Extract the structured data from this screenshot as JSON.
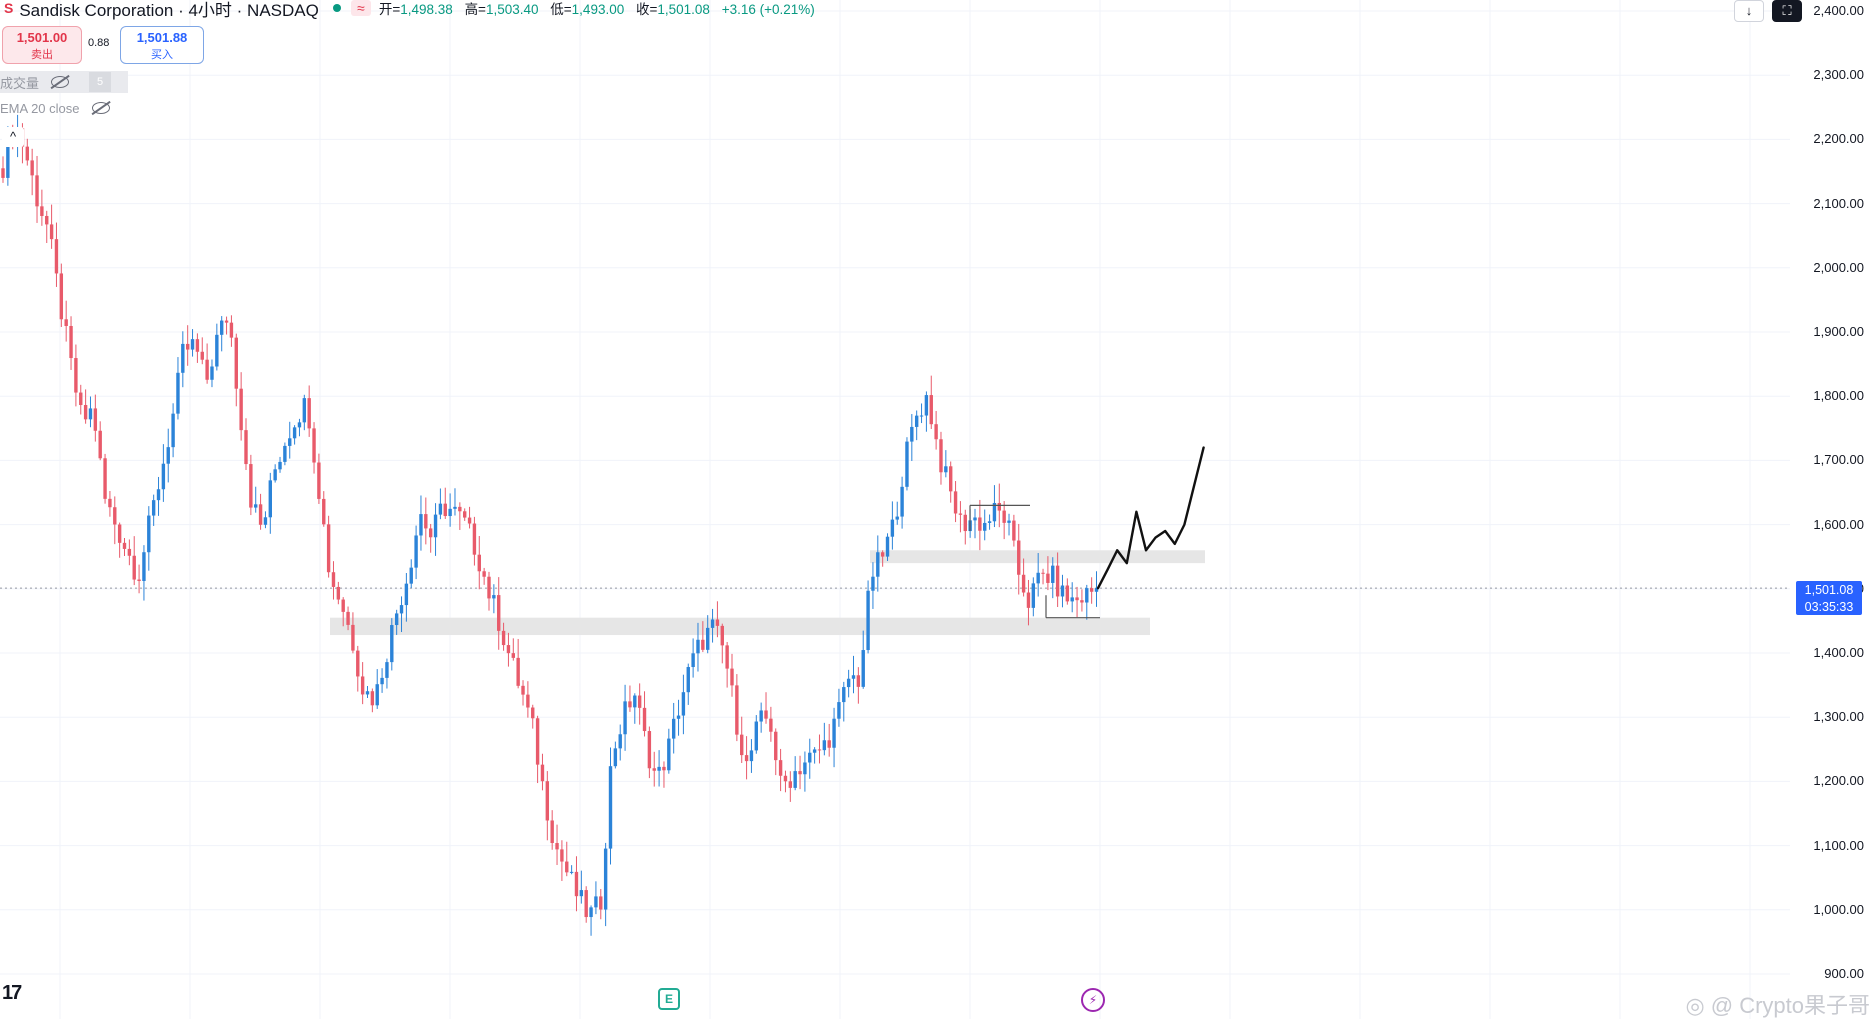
{
  "header": {
    "symbol_logo": "S",
    "title": "Sandisk Corporation · 4小时 · NASDAQ",
    "wave_icon": "≈",
    "open_label": "开=",
    "open": "1,498.38",
    "high_label": "高=",
    "high": "1,503.40",
    "low_label": "低=",
    "low": "1,493.00",
    "close_label": "收=",
    "close": "1,501.08",
    "change": "+3.16 (+0.21%)"
  },
  "trade": {
    "sell_price": "1,501.00",
    "sell_label": "卖出",
    "spread": "0.88",
    "buy_price": "1,501.88",
    "buy_label": "买入"
  },
  "indicators": {
    "volume_label": "成交量",
    "volume_badge": "5",
    "ema_label": "EMA 20 close",
    "collapse_icon": "^"
  },
  "price_tag": {
    "price": "1,501.08",
    "countdown": "03:35:33"
  },
  "bottom": {
    "tv_logo": "17",
    "event_e": "E",
    "event_bolt": "⚡",
    "watermark": "◎ @ Crypto果子哥"
  },
  "colors": {
    "up": "#2b83d8",
    "down": "#e85a6a",
    "accent": "#2962ff",
    "grid": "#f0f3fa",
    "zone": "#e6e6e6"
  },
  "chart_data": {
    "type": "candlestick",
    "yticks": [
      "900.00",
      "1,000.00",
      "1,100.00",
      "1,200.00",
      "1,300.00",
      "1,400.00",
      "1,500.00",
      "1,600.00",
      "1,700.00",
      "1,800.00",
      "1,900.00",
      "2,000.00",
      "2,100.00",
      "2,200.00",
      "2,300.00",
      "2,400.00"
    ],
    "ylim": [
      880,
      2410
    ],
    "current_price": 1501.08,
    "path": [
      2160,
      2230,
      2180,
      2110,
      2060,
      1950,
      1850,
      1760,
      1780,
      1640,
      1600,
      1560,
      1520,
      1600,
      1680,
      1760,
      1870,
      1880,
      1820,
      1890,
      1930,
      1780,
      1640,
      1590,
      1680,
      1730,
      1770,
      1790,
      1660,
      1520,
      1480,
      1420,
      1340,
      1330,
      1400,
      1470,
      1530,
      1620,
      1580,
      1630,
      1620,
      1600,
      1560,
      1500,
      1450,
      1390,
      1340,
      1280,
      1180,
      1100,
      1060,
      1020,
      990,
      1010,
      1240,
      1300,
      1340,
      1260,
      1200,
      1250,
      1320,
      1380,
      1420,
      1440,
      1400,
      1300,
      1220,
      1290,
      1300,
      1190,
      1210,
      1230,
      1240,
      1260,
      1300,
      1360,
      1360,
      1520,
      1550,
      1600,
      1700,
      1770,
      1800,
      1710,
      1650,
      1600,
      1610,
      1600,
      1620,
      1610,
      1530,
      1480,
      1520,
      1520,
      1490,
      1480,
      1490,
      1501
    ],
    "support_zones": [
      {
        "low": 1428,
        "high": 1455
      },
      {
        "low": 1540,
        "high": 1560
      }
    ],
    "consolidation_box": {
      "low": 1455,
      "high": 1630
    },
    "projection": [
      1501,
      1530,
      1560,
      1540,
      1620,
      1560,
      1580,
      1590,
      1570,
      1600,
      1660,
      1720
    ]
  }
}
